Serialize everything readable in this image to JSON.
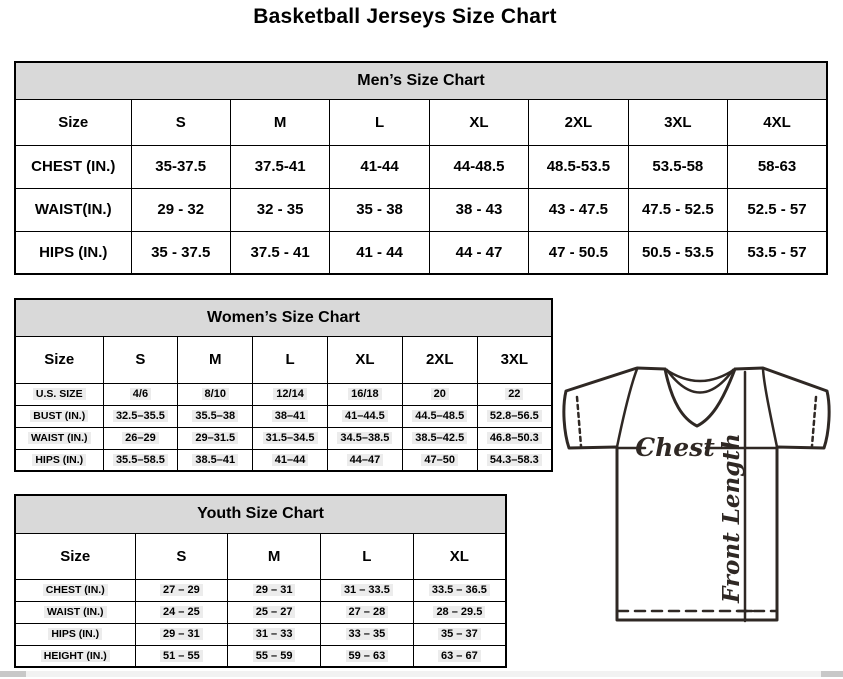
{
  "page": {
    "title": "Basketball Jerseys Size Chart"
  },
  "tables": {
    "mens": {
      "title": "Men’s Size Chart",
      "columns": [
        "Size",
        "S",
        "M",
        "L",
        "XL",
        "2XL",
        "3XL",
        "4XL"
      ],
      "rows": [
        {
          "label": "CHEST (IN.)",
          "values": [
            "35-37.5",
            "37.5-41",
            "41-44",
            "44-48.5",
            "48.5-53.5",
            "53.5-58",
            "58-63"
          ]
        },
        {
          "label": "WAIST(IN.)",
          "values": [
            "29 - 32",
            "32 - 35",
            "35 - 38",
            "38 - 43",
            "43 - 47.5",
            "47.5 - 52.5",
            "52.5 - 57"
          ]
        },
        {
          "label": "HIPS (IN.)",
          "values": [
            "35 - 37.5",
            "37.5 - 41",
            "41 - 44",
            "44 - 47",
            "47 - 50.5",
            "50.5 - 53.5",
            "53.5 - 57"
          ]
        }
      ]
    },
    "womens": {
      "title": "Women’s Size Chart",
      "columns": [
        "Size",
        "S",
        "M",
        "L",
        "XL",
        "2XL",
        "3XL"
      ],
      "rows": [
        {
          "label": "U.S. SIZE",
          "values": [
            "4/6",
            "8/10",
            "12/14",
            "16/18",
            "20",
            "22"
          ]
        },
        {
          "label": "BUST (IN.)",
          "values": [
            "32.5–35.5",
            "35.5–38",
            "38–41",
            "41–44.5",
            "44.5–48.5",
            "52.8–56.5"
          ]
        },
        {
          "label": "WAIST (IN.)",
          "values": [
            "26–29",
            "29–31.5",
            "31.5–34.5",
            "34.5–38.5",
            "38.5–42.5",
            "46.8–50.3"
          ]
        },
        {
          "label": "HIPS (IN.)",
          "values": [
            "35.5–58.5",
            "38.5–41",
            "41–44",
            "44–47",
            "47–50",
            "54.3–58.3"
          ]
        }
      ]
    },
    "youth": {
      "title": "Youth Size Chart",
      "columns": [
        "Size",
        "S",
        "M",
        "L",
        "XL"
      ],
      "rows": [
        {
          "label": "CHEST (IN.)",
          "values": [
            "27 – 29",
            "29 – 31",
            "31 – 33.5",
            "33.5 – 36.5"
          ]
        },
        {
          "label": "WAIST (IN.)",
          "values": [
            "24 – 25",
            "25 – 27",
            "27 – 28",
            "28 – 29.5"
          ]
        },
        {
          "label": "HIPS (IN.)",
          "values": [
            "29 – 31",
            "31 – 33",
            "33 – 35",
            "35 – 37"
          ]
        },
        {
          "label": "HEIGHT (IN.)",
          "values": [
            "51 – 55",
            "55 – 59",
            "59 – 63",
            "63 – 67"
          ]
        }
      ]
    }
  },
  "diagram": {
    "chest_label": "Chest",
    "front_length_label": "Front Length"
  },
  "colors": {
    "table_header_bg": "#d9d9d9",
    "table_border": "#000000",
    "field_shading": "#ececec",
    "jersey_outline": "#2f2824",
    "scrollbar_track": "#f2f2f2",
    "scrollbar_thumb": "#c8c8c8"
  }
}
